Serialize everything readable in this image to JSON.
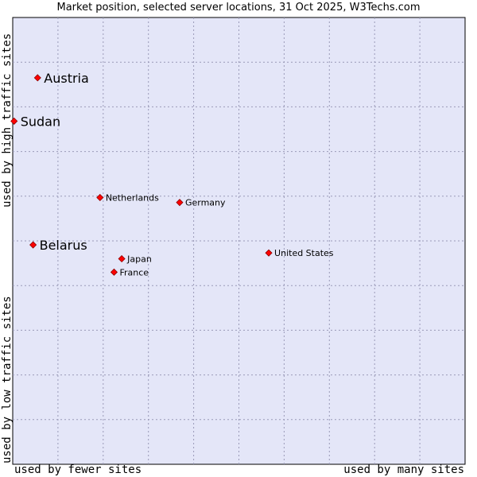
{
  "chart_data": {
    "type": "scatter",
    "title": "Market position, selected server locations, 31 Oct 2025, W3Techs.com",
    "xlabel_left": "used by fewer sites",
    "xlabel_right": "used by many sites",
    "ylabel_top": "used by high traffic sites",
    "ylabel_bottom": "used by low traffic sites",
    "xlim": [
      0,
      100
    ],
    "ylim": [
      0,
      100
    ],
    "grid": true,
    "points": [
      {
        "name": "Austria",
        "x": 5.5,
        "y": 86.5,
        "emphasis": true
      },
      {
        "name": "Sudan",
        "x": 0.3,
        "y": 76.8,
        "emphasis": true
      },
      {
        "name": "Netherlands",
        "x": 19.3,
        "y": 59.7,
        "emphasis": false
      },
      {
        "name": "Germany",
        "x": 36.9,
        "y": 58.6,
        "emphasis": false
      },
      {
        "name": "Belarus",
        "x": 4.5,
        "y": 49.1,
        "emphasis": true
      },
      {
        "name": "Japan",
        "x": 24.1,
        "y": 46.0,
        "emphasis": false
      },
      {
        "name": "France",
        "x": 22.4,
        "y": 43.0,
        "emphasis": false
      },
      {
        "name": "United States",
        "x": 56.6,
        "y": 47.3,
        "emphasis": false
      }
    ]
  }
}
